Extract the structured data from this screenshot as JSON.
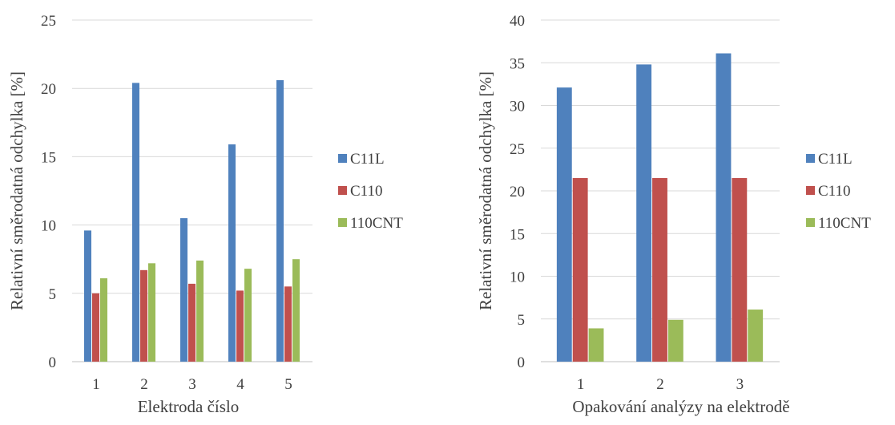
{
  "chart_data": [
    {
      "type": "bar",
      "categories": [
        "1",
        "2",
        "3",
        "4",
        "5"
      ],
      "series": [
        {
          "name": "C11L",
          "values": [
            9.6,
            20.4,
            10.5,
            15.9,
            20.6
          ]
        },
        {
          "name": "C110",
          "values": [
            5.0,
            6.7,
            5.7,
            5.2,
            5.5
          ]
        },
        {
          "name": "110CNT",
          "values": [
            6.1,
            7.2,
            7.4,
            6.8,
            7.5
          ]
        }
      ],
      "colors": [
        "#4f81bd",
        "#c0504d",
        "#9bbb59"
      ],
      "xlabel": "Elektroda číslo",
      "ylabel": "Relativní směrodatná odchylka [%]",
      "ylim": [
        0,
        25
      ],
      "yticks": [
        "0",
        "5",
        "10",
        "15",
        "20",
        "25"
      ],
      "legend": "right",
      "grid": true
    },
    {
      "type": "bar",
      "categories": [
        "1",
        "2",
        "3"
      ],
      "series": [
        {
          "name": "C11L",
          "values": [
            32.1,
            34.8,
            36.1
          ]
        },
        {
          "name": "C110",
          "values": [
            21.5,
            21.5,
            21.5
          ]
        },
        {
          "name": "110CNT",
          "values": [
            3.9,
            4.9,
            6.1
          ]
        }
      ],
      "colors": [
        "#4f81bd",
        "#c0504d",
        "#9bbb59"
      ],
      "xlabel": "Opakování analýzy na elektrodě",
      "ylabel": "Relativní směrodatná odchylka [%]",
      "ylim": [
        0,
        40
      ],
      "yticks": [
        "0",
        "5",
        "10",
        "15",
        "20",
        "25",
        "30",
        "35",
        "40"
      ],
      "legend": "right",
      "grid": true
    }
  ]
}
